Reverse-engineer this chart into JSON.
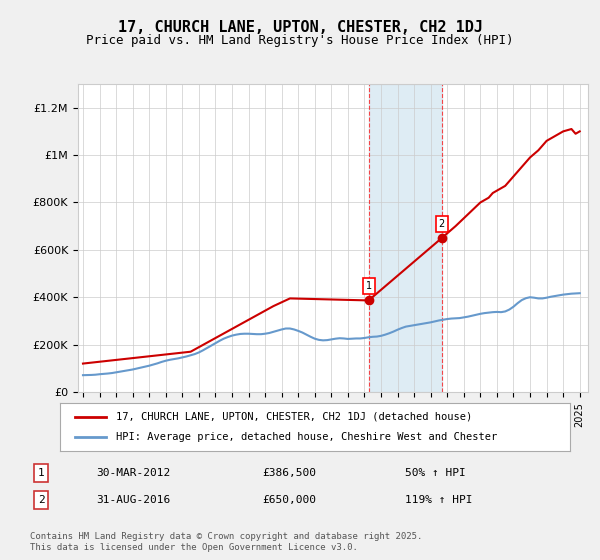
{
  "title": "17, CHURCH LANE, UPTON, CHESTER, CH2 1DJ",
  "subtitle": "Price paid vs. HM Land Registry's House Price Index (HPI)",
  "ylabel_ticks": [
    "£0",
    "£200K",
    "£400K",
    "£600K",
    "£800K",
    "£1M",
    "£1.2M"
  ],
  "ytick_values": [
    0,
    200000,
    400000,
    600000,
    800000,
    1000000,
    1200000
  ],
  "ylim": [
    0,
    1300000
  ],
  "xlim_start": 1995,
  "xlim_end": 2025.5,
  "marker1_date": 2012.25,
  "marker2_date": 2016.67,
  "marker1_price": 386500,
  "marker2_price": 650000,
  "legend_line1": "17, CHURCH LANE, UPTON, CHESTER, CH2 1DJ (detached house)",
  "legend_line2": "HPI: Average price, detached house, Cheshire West and Chester",
  "annotation1_label": "1",
  "annotation1_date": "30-MAR-2012",
  "annotation1_price": "£386,500",
  "annotation1_hpi": "50% ↑ HPI",
  "annotation2_label": "2",
  "annotation2_date": "31-AUG-2016",
  "annotation2_price": "£650,000",
  "annotation2_hpi": "119% ↑ HPI",
  "footer": "Contains HM Land Registry data © Crown copyright and database right 2025.\nThis data is licensed under the Open Government Licence v3.0.",
  "line_color_red": "#cc0000",
  "line_color_blue": "#6699cc",
  "shade_color": "#d0e4f0",
  "background_color": "#f0f0f0",
  "plot_bg_color": "#ffffff",
  "hpi_data_x": [
    1995.0,
    1995.25,
    1995.5,
    1995.75,
    1996.0,
    1996.25,
    1996.5,
    1996.75,
    1997.0,
    1997.25,
    1997.5,
    1997.75,
    1998.0,
    1998.25,
    1998.5,
    1998.75,
    1999.0,
    1999.25,
    1999.5,
    1999.75,
    2000.0,
    2000.25,
    2000.5,
    2000.75,
    2001.0,
    2001.25,
    2001.5,
    2001.75,
    2002.0,
    2002.25,
    2002.5,
    2002.75,
    2003.0,
    2003.25,
    2003.5,
    2003.75,
    2004.0,
    2004.25,
    2004.5,
    2004.75,
    2005.0,
    2005.25,
    2005.5,
    2005.75,
    2006.0,
    2006.25,
    2006.5,
    2006.75,
    2007.0,
    2007.25,
    2007.5,
    2007.75,
    2008.0,
    2008.25,
    2008.5,
    2008.75,
    2009.0,
    2009.25,
    2009.5,
    2009.75,
    2010.0,
    2010.25,
    2010.5,
    2010.75,
    2011.0,
    2011.25,
    2011.5,
    2011.75,
    2012.0,
    2012.25,
    2012.5,
    2012.75,
    2013.0,
    2013.25,
    2013.5,
    2013.75,
    2014.0,
    2014.25,
    2014.5,
    2014.75,
    2015.0,
    2015.25,
    2015.5,
    2015.75,
    2016.0,
    2016.25,
    2016.5,
    2016.75,
    2017.0,
    2017.25,
    2017.5,
    2017.75,
    2018.0,
    2018.25,
    2018.5,
    2018.75,
    2019.0,
    2019.25,
    2019.5,
    2019.75,
    2020.0,
    2020.25,
    2020.5,
    2020.75,
    2021.0,
    2021.25,
    2021.5,
    2021.75,
    2022.0,
    2022.25,
    2022.5,
    2022.75,
    2023.0,
    2023.25,
    2023.5,
    2023.75,
    2024.0,
    2024.25,
    2024.5,
    2024.75,
    2025.0
  ],
  "hpi_data_y": [
    71000,
    71500,
    72000,
    73000,
    75000,
    76500,
    78000,
    80000,
    83000,
    86000,
    89000,
    92000,
    95000,
    99000,
    103000,
    107000,
    111000,
    116000,
    121000,
    127000,
    132000,
    136000,
    139000,
    142000,
    146000,
    150000,
    155000,
    160000,
    167000,
    176000,
    186000,
    196000,
    206000,
    216000,
    225000,
    232000,
    238000,
    242000,
    245000,
    246000,
    246000,
    245000,
    244000,
    244000,
    246000,
    249000,
    254000,
    259000,
    264000,
    268000,
    268000,
    264000,
    258000,
    251000,
    242000,
    233000,
    225000,
    220000,
    218000,
    219000,
    222000,
    225000,
    227000,
    226000,
    224000,
    225000,
    226000,
    226000,
    228000,
    231000,
    233000,
    234000,
    237000,
    242000,
    248000,
    255000,
    263000,
    270000,
    276000,
    279000,
    282000,
    285000,
    288000,
    291000,
    294000,
    298000,
    302000,
    305000,
    308000,
    310000,
    311000,
    312000,
    315000,
    318000,
    322000,
    326000,
    330000,
    333000,
    335000,
    337000,
    338000,
    337000,
    340000,
    348000,
    360000,
    375000,
    388000,
    396000,
    400000,
    398000,
    395000,
    395000,
    398000,
    402000,
    405000,
    408000,
    411000,
    413000,
    415000,
    416000,
    417000
  ],
  "sale_data_x": [
    1995.0,
    2001.5,
    2006.5,
    2007.5,
    2012.25,
    2016.67,
    2017.5,
    2018.25,
    2019.0,
    2019.5,
    2019.75,
    2020.5,
    2021.0,
    2021.5,
    2022.0,
    2022.5,
    2022.75,
    2023.0,
    2023.5,
    2024.0,
    2024.5,
    2024.75,
    2025.0
  ],
  "sale_data_y": [
    120000,
    170000,
    362500,
    395000,
    386500,
    650000,
    700000,
    750000,
    800000,
    820000,
    840000,
    870000,
    910000,
    950000,
    990000,
    1020000,
    1040000,
    1060000,
    1080000,
    1100000,
    1110000,
    1090000,
    1100000
  ]
}
